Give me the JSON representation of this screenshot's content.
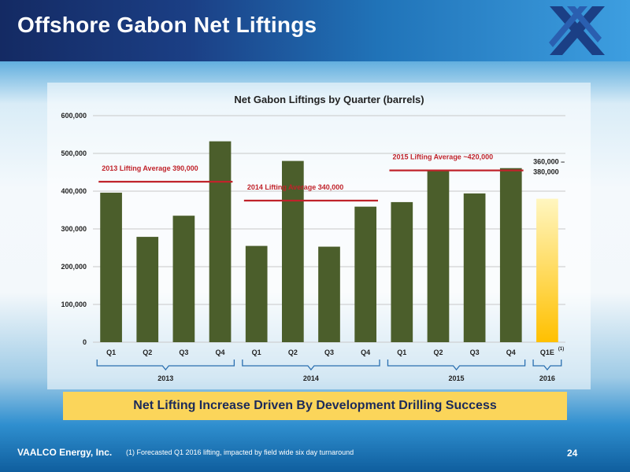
{
  "header": {
    "title": "Offshore Gabon Net Liftings"
  },
  "banner": {
    "text": "Net Lifting Increase Driven By Development Drilling Success"
  },
  "footer": {
    "company": "VAALCO Energy, Inc.",
    "note": "(1)   Forecasted Q1 2016 lifting, impacted by field wide six day turnaround",
    "page": "24"
  },
  "colors": {
    "bar": "#4b5e2b",
    "forecast_top": "#fff6c0",
    "forecast_bottom": "#ffc000",
    "average_line": "#c0232b",
    "annotation_text": "#c0232b"
  },
  "chart_data": {
    "type": "bar",
    "title": "Net Gabon Liftings by Quarter (barrels)",
    "xlabel": "",
    "ylabel": "",
    "ylim": [
      0,
      600000
    ],
    "yticks": [
      "0",
      "100,000",
      "200,000",
      "300,000",
      "400,000",
      "500,000",
      "600,000"
    ],
    "grid": true,
    "categories": [
      "Q1",
      "Q2",
      "Q3",
      "Q4",
      "Q1",
      "Q2",
      "Q3",
      "Q4",
      "Q1",
      "Q2",
      "Q3",
      "Q4",
      "Q1E"
    ],
    "values": [
      396000,
      279000,
      335000,
      532000,
      255000,
      480000,
      253000,
      359000,
      371000,
      456000,
      394000,
      461000,
      380000
    ],
    "forecast_index": 12,
    "forecast_superscript": "(1)",
    "forecast_label": [
      "360,000 –",
      "380,000"
    ],
    "groups": [
      {
        "label": "2013",
        "start": 0,
        "end": 3
      },
      {
        "label": "2014",
        "start": 4,
        "end": 7
      },
      {
        "label": "2015",
        "start": 8,
        "end": 11
      },
      {
        "label": "2016",
        "start": 12,
        "end": 12
      }
    ],
    "averages": [
      {
        "label": "2013 Lifting Average 390,000",
        "value": 390000,
        "start": 0,
        "end": 3
      },
      {
        "label": "2014 Lifting Average 340,000",
        "value": 340000,
        "start": 4,
        "end": 7
      },
      {
        "label": "2015 Lifting Average ~420,000",
        "value": 420000,
        "start": 8,
        "end": 11
      }
    ]
  }
}
